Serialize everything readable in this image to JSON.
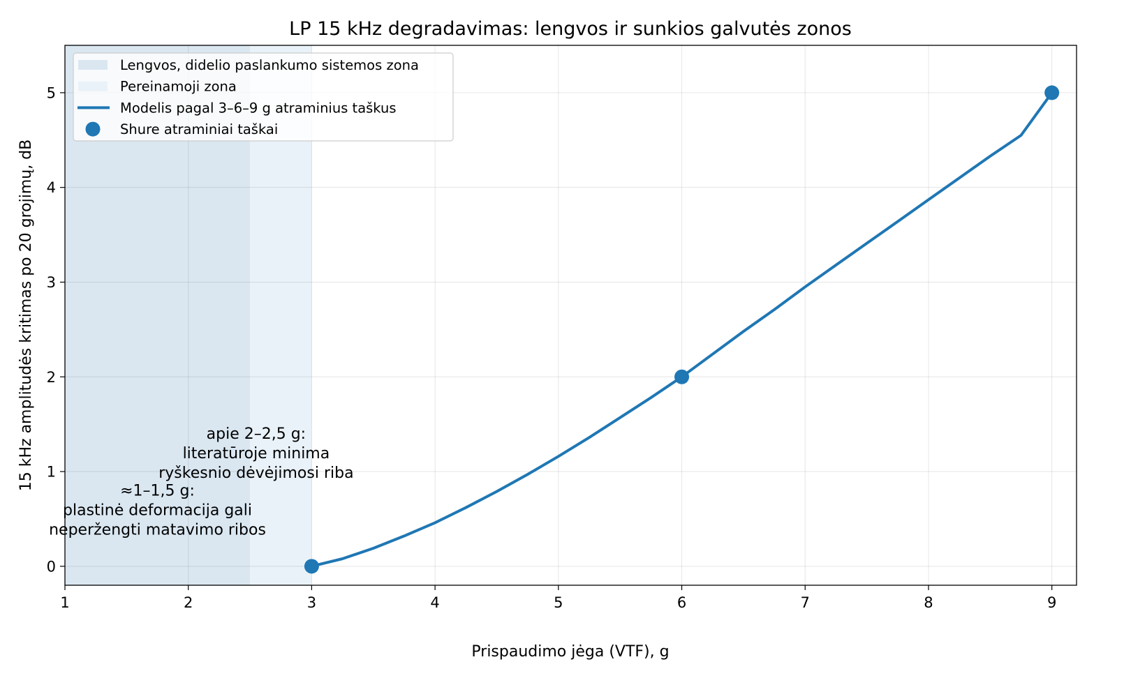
{
  "chart_data": {
    "type": "line",
    "title": "LP 15 kHz degradavimas: lengvos ir sunkios galvutės zonos",
    "xlabel": "Prispaudimo jėga (VTF), g",
    "ylabel": "15 kHz amplitudės kritimas po 20 grojimų, dB",
    "xlim": [
      1,
      9.2
    ],
    "ylim": [
      -0.2,
      5.5
    ],
    "x_ticks": [
      1,
      2,
      3,
      4,
      5,
      6,
      7,
      8,
      9
    ],
    "y_ticks": [
      0,
      1,
      2,
      3,
      4,
      5
    ],
    "grid": true,
    "legend_position": "top-left",
    "zones": [
      {
        "name": "Lengvos, didelio paslankumo sistemos zona",
        "x_start": 1,
        "x_end": 2.5,
        "color": "#dae7f1"
      },
      {
        "name": "Pereinamoji zona",
        "x_start": 2.5,
        "x_end": 3,
        "color": "#e9f2f8"
      }
    ],
    "series": [
      {
        "name": "Modelis pagal 3–6–9 g atraminius taškus",
        "kind": "line",
        "color": "#1f77b4",
        "x": [
          3,
          3.25,
          3.5,
          3.75,
          4,
          4.25,
          4.5,
          4.75,
          5,
          5.25,
          5.5,
          5.75,
          6,
          6.25,
          6.5,
          6.75,
          7,
          7.25,
          7.5,
          7.75,
          8,
          8.25,
          8.5,
          8.75,
          9
        ],
        "y": [
          0,
          0.08,
          0.19,
          0.32,
          0.46,
          0.62,
          0.79,
          0.97,
          1.16,
          1.36,
          1.57,
          1.78,
          2.0,
          2.24,
          2.48,
          2.71,
          2.95,
          3.18,
          3.41,
          3.64,
          3.87,
          4.1,
          4.33,
          4.55,
          5.0
        ]
      },
      {
        "name": "Shure atraminiai taškai",
        "kind": "scatter",
        "color": "#1f77b4",
        "x": [
          3,
          6,
          9
        ],
        "y": [
          0,
          2,
          5
        ]
      }
    ],
    "annotations": [
      {
        "lines": [
          "apie 2–2,5 g:",
          "literatūroje minima",
          "ryškesnio dėvėjimosi riba"
        ],
        "x": 2.55,
        "y": 1.2
      },
      {
        "lines": [
          "≈1–1,5 g:",
          "plastinė deformacija gali",
          "neperžengti matavimo ribos"
        ],
        "x": 1.75,
        "y": 0.6
      }
    ]
  }
}
